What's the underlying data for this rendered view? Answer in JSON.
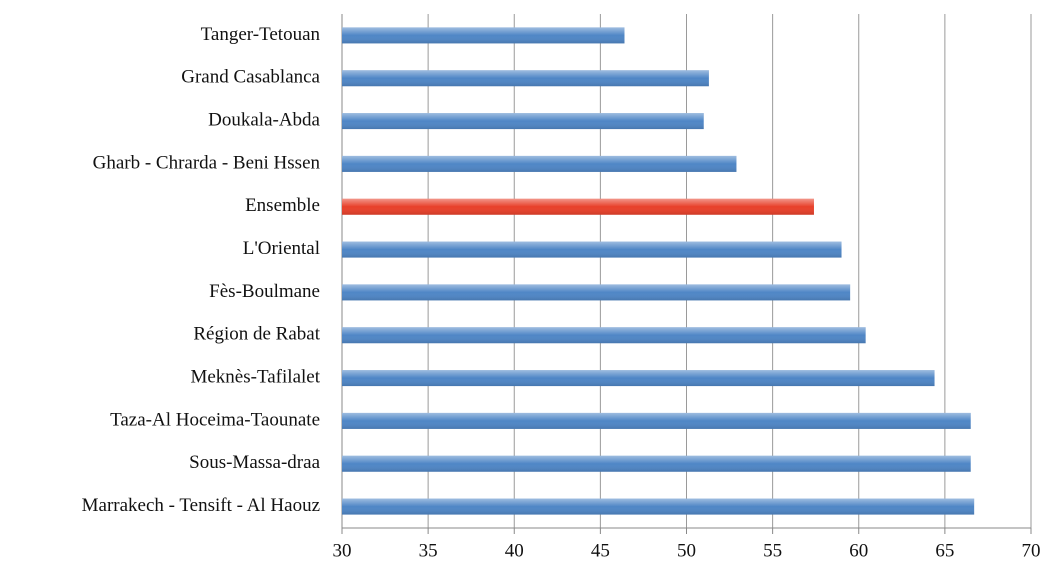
{
  "chart_data": {
    "type": "barh",
    "categories": [
      "Tanger-Tetouan",
      "Grand Casablanca",
      "Doukala-Abda",
      "Gharb - Chrarda - Beni Hssen",
      "Ensemble",
      "L'Oriental",
      "Fès-Boulmane",
      "Région de Rabat",
      "Meknès-Tafilalet",
      "Taza-Al Hoceima-Taounate",
      "Sous-Massa-draa",
      "Marrakech - Tensift - Al Haouz"
    ],
    "values": [
      46.4,
      51.3,
      51.0,
      52.9,
      57.4,
      59.0,
      59.5,
      60.4,
      64.4,
      66.5,
      66.5,
      66.7
    ],
    "colors": [
      "#4f86c6",
      "#4f86c6",
      "#4f86c6",
      "#4f86c6",
      "#e8402a",
      "#4f86c6",
      "#4f86c6",
      "#4f86c6",
      "#4f86c6",
      "#4f86c6",
      "#4f86c6",
      "#4f86c6"
    ],
    "xlim": [
      30,
      70
    ],
    "xticks": [
      30,
      35,
      40,
      45,
      50,
      55,
      60,
      65,
      70
    ],
    "grid": true
  }
}
